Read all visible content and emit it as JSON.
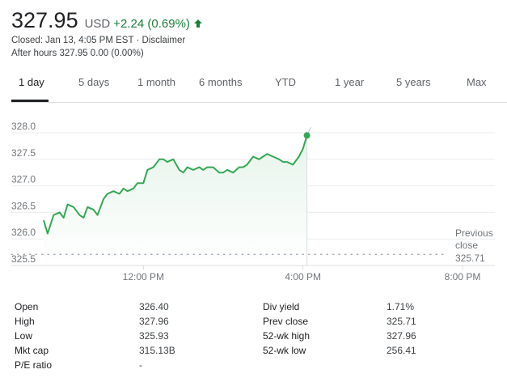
{
  "quote": {
    "price": "327.95",
    "currency": "USD",
    "change": "+2.24 (0.69%)",
    "direction_icon": "arrow-up-icon",
    "closed_prefix": "Closed: Jan 13, 4:05 PM EST · ",
    "disclaimer": "Disclaimer",
    "after_hours": "After hours 327.95 0.00 (0.00%)"
  },
  "colors": {
    "up": "#188038",
    "line": "#34a853",
    "area_top": "#e6f4ea",
    "text": "#202124",
    "muted": "#70757a"
  },
  "tabs": [
    {
      "label": "1 day",
      "active": true
    },
    {
      "label": "5 days",
      "active": false
    },
    {
      "label": "1 month",
      "active": false
    },
    {
      "label": "6 months",
      "active": false
    },
    {
      "label": "YTD",
      "active": false
    },
    {
      "label": "1 year",
      "active": false
    },
    {
      "label": "5 years",
      "active": false
    },
    {
      "label": "Max",
      "active": false
    }
  ],
  "chart_data": {
    "type": "area",
    "title": "",
    "xlabel": "",
    "ylabel": "",
    "x_ticks": [
      "12:00 PM",
      "4:00 PM",
      "8:00 PM"
    ],
    "y_ticks": [
      "328.0",
      "327.5",
      "327.0",
      "326.5",
      "326.0",
      "325.5"
    ],
    "ylim": [
      325.5,
      328.0
    ],
    "x_range_hours": [
      9.5,
      20.0
    ],
    "grid": true,
    "previous_close": {
      "label_line1": "Previous",
      "label_line2": "close",
      "value": "325.71"
    },
    "x": [
      9.5,
      9.6,
      9.75,
      9.9,
      10.0,
      10.1,
      10.25,
      10.4,
      10.5,
      10.6,
      10.75,
      10.85,
      11.0,
      11.1,
      11.25,
      11.4,
      11.5,
      11.6,
      11.75,
      11.85,
      12.0,
      12.1,
      12.25,
      12.4,
      12.5,
      12.6,
      12.75,
      12.9,
      13.0,
      13.1,
      13.25,
      13.4,
      13.5,
      13.6,
      13.75,
      13.9,
      14.0,
      14.1,
      14.25,
      14.4,
      14.5,
      14.6,
      14.75,
      14.9,
      15.0,
      15.1,
      15.25,
      15.4,
      15.5,
      15.6,
      15.75,
      15.9,
      16.0,
      16.1
    ],
    "y": [
      326.35,
      326.1,
      326.45,
      326.5,
      326.4,
      326.65,
      326.6,
      326.45,
      326.4,
      326.6,
      326.55,
      326.45,
      326.75,
      326.85,
      326.9,
      326.85,
      326.95,
      326.9,
      326.95,
      327.05,
      327.05,
      327.3,
      327.35,
      327.5,
      327.5,
      327.45,
      327.5,
      327.3,
      327.25,
      327.35,
      327.3,
      327.35,
      327.3,
      327.35,
      327.35,
      327.25,
      327.25,
      327.3,
      327.25,
      327.35,
      327.35,
      327.4,
      327.55,
      327.5,
      327.55,
      327.6,
      327.55,
      327.5,
      327.45,
      327.45,
      327.4,
      327.55,
      327.7,
      327.95
    ]
  },
  "stats": [
    {
      "label": "Open",
      "value": "326.40",
      "label2": "Div yield",
      "value2": "1.71%"
    },
    {
      "label": "High",
      "value": "327.96",
      "label2": "Prev close",
      "value2": "325.71"
    },
    {
      "label": "Low",
      "value": "325.93",
      "label2": "52-wk high",
      "value2": "327.96"
    },
    {
      "label": "Mkt cap",
      "value": "315.13B",
      "label2": "52-wk low",
      "value2": "256.41"
    },
    {
      "label": "P/E ratio",
      "value": "-",
      "label2": "",
      "value2": ""
    }
  ]
}
